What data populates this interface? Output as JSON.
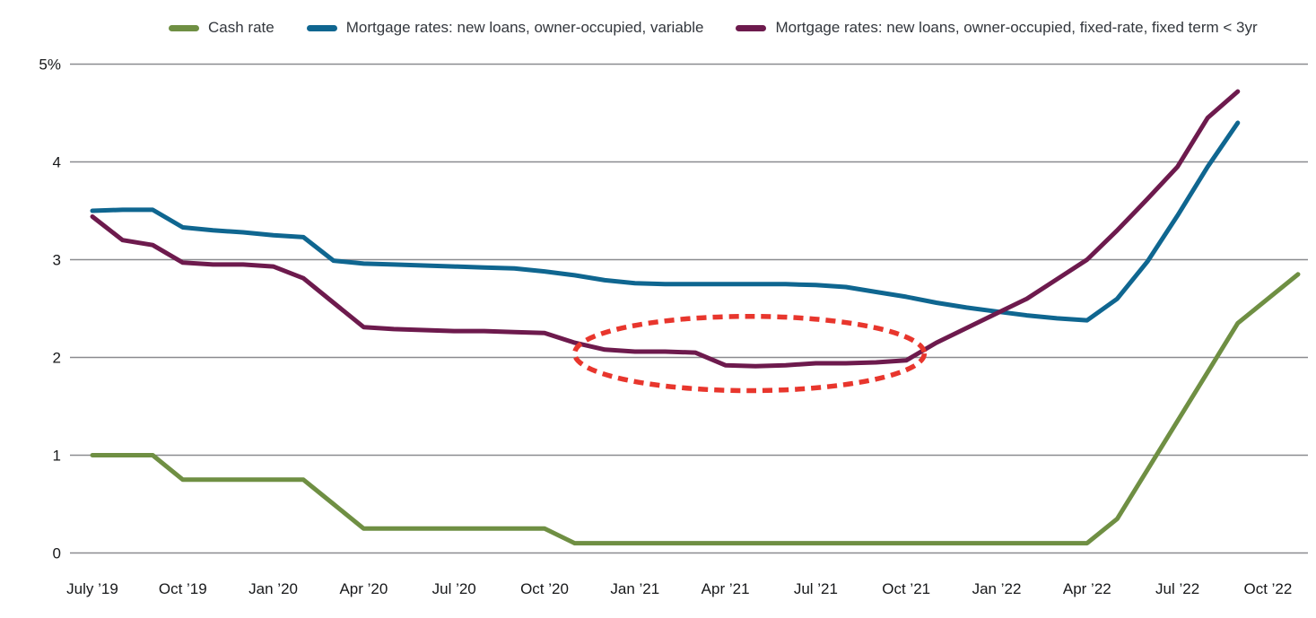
{
  "legend": {
    "items": [
      {
        "name": "cash-rate",
        "label": "Cash rate",
        "color": "#6f8f43"
      },
      {
        "name": "variable-mortgage",
        "label": "Mortgage rates: new loans, owner-occupied, variable",
        "color": "#0f6690"
      },
      {
        "name": "fixed-mortgage",
        "label": "Mortgage rates: new loans, owner-occupied, fixed-rate, fixed term < 3yr",
        "color": "#6d1a4d"
      }
    ]
  },
  "chart_data": {
    "type": "line",
    "title": "",
    "unit": "percent",
    "ylim": [
      0,
      5
    ],
    "grid": "horizontal",
    "legend_position": "top",
    "y_tick_labels": [
      "0",
      "1",
      "2",
      "3",
      "4",
      "5%"
    ],
    "x_tick_labels": [
      "July ’19",
      "Oct ’19",
      "Jan ’20",
      "Apr ’20",
      "Jul ’20",
      "Oct ’20",
      "Jan ’21",
      "Apr ’21",
      "Jul ’21",
      "Oct ’21",
      "Jan ’22",
      "Apr ’22",
      "Jul ’22",
      "Oct ’22"
    ],
    "x": [
      "Jul 2019",
      "Aug 2019",
      "Sep 2019",
      "Oct 2019",
      "Nov 2019",
      "Dec 2019",
      "Jan 2020",
      "Feb 2020",
      "Mar 2020",
      "Apr 2020",
      "May 2020",
      "Jun 2020",
      "Jul 2020",
      "Aug 2020",
      "Sep 2020",
      "Oct 2020",
      "Nov 2020",
      "Dec 2020",
      "Jan 2021",
      "Feb 2021",
      "Mar 2021",
      "Apr 2021",
      "May 2021",
      "Jun 2021",
      "Jul 2021",
      "Aug 2021",
      "Sep 2021",
      "Oct 2021",
      "Nov 2021",
      "Dec 2021",
      "Jan 2022",
      "Feb 2022",
      "Mar 2022",
      "Apr 2022",
      "May 2022",
      "Jun 2022",
      "Jul 2022",
      "Aug 2022",
      "Sep 2022",
      "Oct 2022",
      "Nov 2022"
    ],
    "series": [
      {
        "name": "Cash rate",
        "color": "#6f8f43",
        "values": [
          1.0,
          1.0,
          1.0,
          0.75,
          0.75,
          0.75,
          0.75,
          0.75,
          0.5,
          0.25,
          0.25,
          0.25,
          0.25,
          0.25,
          0.25,
          0.25,
          0.1,
          0.1,
          0.1,
          0.1,
          0.1,
          0.1,
          0.1,
          0.1,
          0.1,
          0.1,
          0.1,
          0.1,
          0.1,
          0.1,
          0.1,
          0.1,
          0.1,
          0.1,
          0.35,
          0.85,
          1.35,
          1.85,
          2.35,
          2.6,
          2.85
        ]
      },
      {
        "name": "Mortgage rates: new loans, owner-occupied, variable",
        "color": "#0f6690",
        "values": [
          3.5,
          3.51,
          3.51,
          3.33,
          3.3,
          3.28,
          3.25,
          3.23,
          2.99,
          2.96,
          2.95,
          2.94,
          2.93,
          2.92,
          2.91,
          2.88,
          2.84,
          2.79,
          2.76,
          2.75,
          2.75,
          2.75,
          2.75,
          2.75,
          2.74,
          2.72,
          2.67,
          2.62,
          2.56,
          2.51,
          2.47,
          2.43,
          2.4,
          2.38,
          2.6,
          2.98,
          3.45,
          3.95,
          4.4,
          null,
          null
        ]
      },
      {
        "name": "Mortgage rates: new loans, owner-occupied, fixed-rate, fixed term < 3yr",
        "color": "#6d1a4d",
        "values": [
          3.44,
          3.2,
          3.15,
          2.97,
          2.95,
          2.95,
          2.93,
          2.81,
          2.56,
          2.31,
          2.29,
          2.28,
          2.27,
          2.27,
          2.26,
          2.25,
          2.15,
          2.08,
          2.06,
          2.06,
          2.05,
          1.92,
          1.91,
          1.92,
          1.94,
          1.94,
          1.95,
          1.97,
          2.15,
          2.3,
          2.45,
          2.6,
          2.8,
          3.0,
          3.3,
          3.62,
          3.95,
          4.45,
          4.72,
          null,
          null
        ]
      }
    ],
    "annotation": {
      "type": "dashed-ellipse",
      "color": "#e8362d",
      "center_month_index": 21.8,
      "center_value": 2.04,
      "radius_months": 5.8,
      "radius_value": 0.38
    }
  }
}
